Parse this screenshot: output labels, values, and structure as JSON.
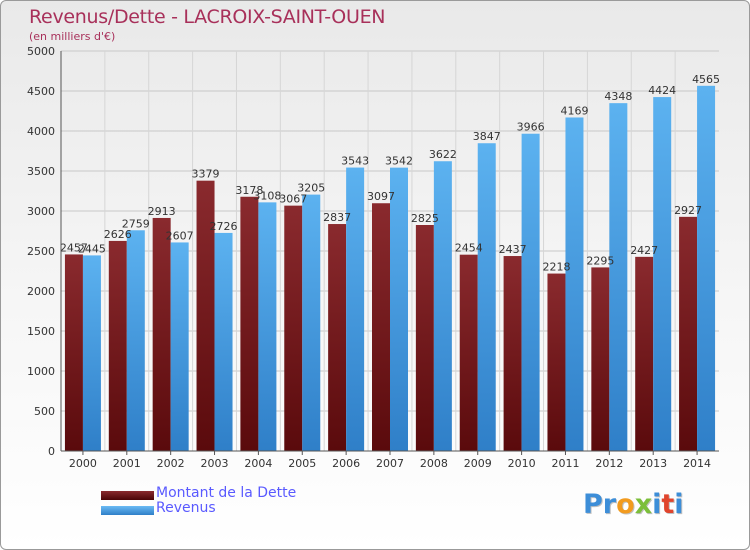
{
  "chart_data": {
    "type": "bar",
    "title": "Revenus/Dette - LACROIX-SAINT-OUEN",
    "subtitle": "(en milliers d'€)",
    "categories": [
      "2000",
      "2001",
      "2002",
      "2003",
      "2004",
      "2005",
      "2006",
      "2007",
      "2008",
      "2009",
      "2010",
      "2011",
      "2012",
      "2013",
      "2014"
    ],
    "series": [
      {
        "name": "Montant de la Dette",
        "color": "#7a1f22",
        "values": [
          2457,
          2626,
          2913,
          3379,
          3178,
          3067,
          2837,
          3097,
          2825,
          2454,
          2437,
          2218,
          2295,
          2427,
          2927
        ],
        "value_labels": [
          "2457",
          "2626",
          "2913",
          "3379",
          "3178",
          "3067",
          "2837",
          "3097",
          "2825",
          "2454",
          "2437",
          "2218",
          "2295",
          "2427",
          "2927"
        ]
      },
      {
        "name": "Revenus",
        "color": "#4aa3e8",
        "values": [
          2445,
          2759,
          2607,
          2726,
          3108,
          3205,
          3543,
          3542,
          3622,
          3847,
          3966,
          4169,
          4348,
          4424,
          4565
        ],
        "value_labels": [
          "2445",
          "2759",
          "2607",
          "2726",
          "3108",
          "3205",
          "3543",
          "3542",
          "3622",
          "3847",
          "3966",
          "4169",
          "4348",
          "4424",
          "4565"
        ]
      }
    ],
    "ylim": [
      0,
      5000
    ],
    "yticks": [
      0,
      500,
      1000,
      1500,
      2000,
      2500,
      3000,
      3500,
      4000,
      4500,
      5000
    ],
    "grid": true,
    "legend_position": "bottom-left"
  },
  "legend": {
    "debt_label": "Montant de la Dette",
    "revenue_label": "Revenus"
  },
  "logo": {
    "text": "Proxiti",
    "colors": [
      "#3d8ed8",
      "#f29b1f",
      "#7cbf3a",
      "#e0452d"
    ]
  }
}
